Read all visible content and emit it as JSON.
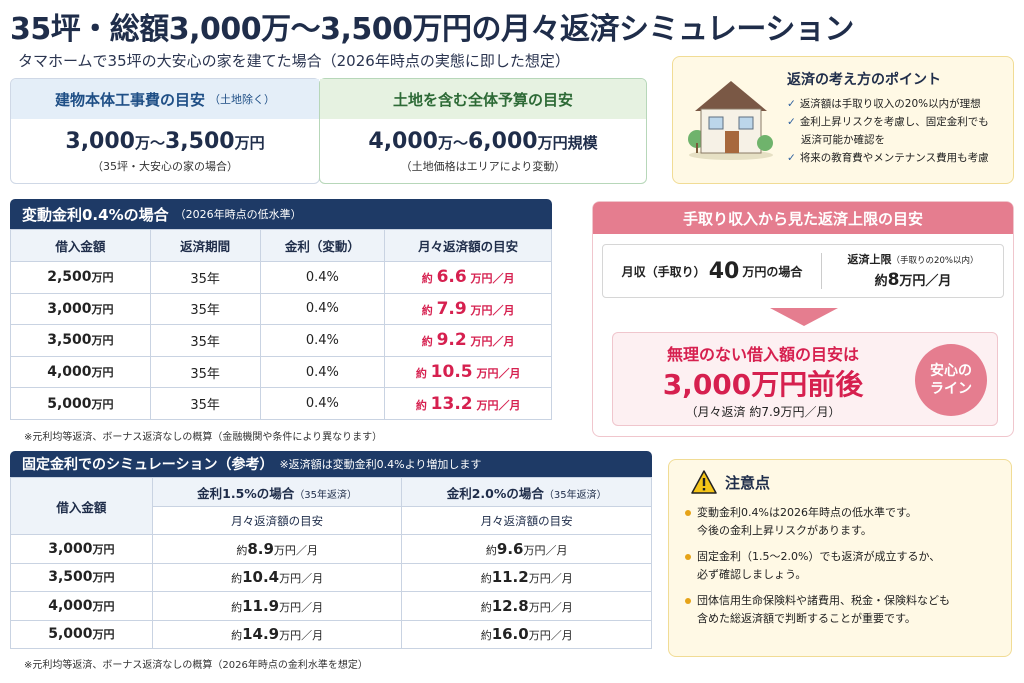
{
  "header": {
    "title": "35坪・総額3,000万〜3,500万円の月々返済シミュレーション",
    "subtitle": "タマホームで35坪の大安心の家を建てた場合（2026年時点の実態に即した想定）"
  },
  "building_cost": {
    "label": "建物本体工事費の目安",
    "label_note": "（土地除く）",
    "value": "3,000",
    "value_mid": "万〜",
    "value2": "3,500",
    "unit": "万円",
    "note": "（35坪・大安心の家の場合）"
  },
  "total_budget": {
    "label": "土地を含む全体予算の目安",
    "value": "4,000",
    "value_mid": "万〜",
    "value2": "6,000",
    "unit": "万円規模",
    "note": "（土地価格はエリアにより変動）"
  },
  "points": {
    "title": "返済の考え方のポイント",
    "items": [
      "返済額は手取り収入の20%以内が理想",
      "金利上昇リスクを考慮し、固定金利でも",
      "返済可能か確認を",
      "将来の教育費やメンテナンス費用も考慮"
    ]
  },
  "variable": {
    "title": "変動金利0.4%の場合",
    "title_note": "（2026年時点の低水準）",
    "columns": [
      "借入金額",
      "返済期間",
      "金利（変動）",
      "月々返済額の目安"
    ],
    "rows": [
      {
        "amount": "2,500",
        "unit": "万円",
        "term": "35年",
        "rate": "0.4%",
        "pre": "約",
        "pay": "6.6",
        "post": "万円／月"
      },
      {
        "amount": "3,000",
        "unit": "万円",
        "term": "35年",
        "rate": "0.4%",
        "pre": "約",
        "pay": "7.9",
        "post": "万円／月"
      },
      {
        "amount": "3,500",
        "unit": "万円",
        "term": "35年",
        "rate": "0.4%",
        "pre": "約",
        "pay": "9.2",
        "post": "万円／月"
      },
      {
        "amount": "4,000",
        "unit": "万円",
        "term": "35年",
        "rate": "0.4%",
        "pre": "約",
        "pay": "10.5",
        "post": "万円／月"
      },
      {
        "amount": "5,000",
        "unit": "万円",
        "term": "35年",
        "rate": "0.4%",
        "pre": "約",
        "pay": "13.2",
        "post": "万円／月"
      }
    ],
    "note": "※元利均等返済、ボーナス返済なしの概算（金融機関や条件により異なります）"
  },
  "income": {
    "title": "手取り収入から見た返済上限の目安",
    "monthly_label": "月収（手取り）",
    "monthly_value": "40",
    "monthly_suffix": "万円の場合",
    "limit_label": "返済上限",
    "limit_note": "（手取りの20%以内）",
    "limit_pre": "約",
    "limit_value": "8",
    "limit_unit": "万円／月",
    "guide_label": "無理のない借入額の目安は",
    "guide_value": "3,000万円前後",
    "guide_sub": "（月々返済  約7.9万円／月）",
    "badge_line1": "安心の",
    "badge_line2": "ライン"
  },
  "fixed": {
    "title": "固定金利でのシミュレーション（参考）",
    "title_note": "※返済額は変動金利0.4%より増加します",
    "col_amount": "借入金額",
    "col_a": "金利1.5%の場合",
    "col_a_note": "（35年返済）",
    "col_b": "金利2.0%の場合",
    "col_b_note": "（35年返済）",
    "sub_label": "月々返済額の目安",
    "rows": [
      {
        "amount": "3,000",
        "unit": "万円",
        "a": "8.9",
        "b": "9.6"
      },
      {
        "amount": "3,500",
        "unit": "万円",
        "a": "10.4",
        "b": "11.2"
      },
      {
        "amount": "4,000",
        "unit": "万円",
        "a": "11.9",
        "b": "12.8"
      },
      {
        "amount": "5,000",
        "unit": "万円",
        "a": "14.9",
        "b": "16.0"
      }
    ],
    "pre": "約",
    "post": "万円／月",
    "note": "※元利均等返済、ボーナス返済なしの概算（2026年時点の金利水準を想定）"
  },
  "caution": {
    "title": "注意点",
    "items": [
      [
        "変動金利0.4%は2026年時点の低水準です。",
        "今後の金利上昇リスクがあります。"
      ],
      [
        "固定金利（1.5〜2.0%）でも返済が成立するか、",
        "必ず確認しましょう。"
      ],
      [
        "団体信用生命保険料や諸費用、税金・保険料なども",
        "含めた総返済額で判断することが重要です。"
      ]
    ]
  },
  "icons": {
    "house": "house-icon",
    "warning": "warning-icon",
    "check": "check-icon"
  },
  "colors": {
    "navy": "#1e3a66",
    "pink": "#e57d8f",
    "accent_red": "#d6204f",
    "green": "#2d6a36",
    "cream": "#fff9e5"
  }
}
